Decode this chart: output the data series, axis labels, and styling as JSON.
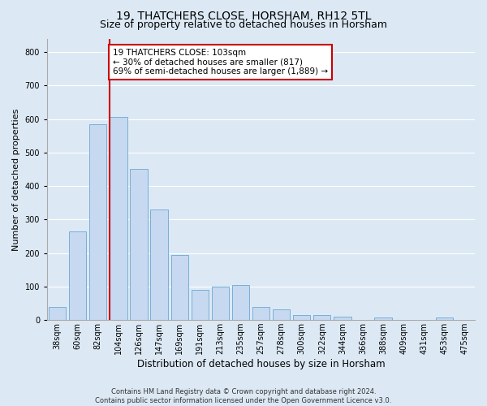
{
  "title": "19, THATCHERS CLOSE, HORSHAM, RH12 5TL",
  "subtitle": "Size of property relative to detached houses in Horsham",
  "xlabel": "Distribution of detached houses by size in Horsham",
  "ylabel": "Number of detached properties",
  "categories": [
    "38sqm",
    "60sqm",
    "82sqm",
    "104sqm",
    "126sqm",
    "147sqm",
    "169sqm",
    "191sqm",
    "213sqm",
    "235sqm",
    "257sqm",
    "278sqm",
    "300sqm",
    "322sqm",
    "344sqm",
    "366sqm",
    "388sqm",
    "409sqm",
    "431sqm",
    "453sqm",
    "475sqm"
  ],
  "values": [
    38,
    265,
    585,
    605,
    450,
    330,
    195,
    90,
    100,
    105,
    38,
    33,
    15,
    15,
    10,
    0,
    7,
    0,
    0,
    7,
    0
  ],
  "bar_color": "#c6d9f0",
  "bar_edge_color": "#7aaed6",
  "vline_color": "#cc0000",
  "annotation_text": "19 THATCHERS CLOSE: 103sqm\n← 30% of detached houses are smaller (817)\n69% of semi-detached houses are larger (1,889) →",
  "annotation_box_color": "#ffffff",
  "annotation_box_edge_color": "#cc0000",
  "ylim": [
    0,
    840
  ],
  "yticks": [
    0,
    100,
    200,
    300,
    400,
    500,
    600,
    700,
    800
  ],
  "footer_line1": "Contains HM Land Registry data © Crown copyright and database right 2024.",
  "footer_line2": "Contains public sector information licensed under the Open Government Licence v3.0.",
  "bg_color": "#dce9f5",
  "plot_bg_color": "#dce9f5",
  "grid_color": "#ffffff",
  "title_fontsize": 10,
  "subtitle_fontsize": 9,
  "tick_fontsize": 7,
  "ylabel_fontsize": 8,
  "xlabel_fontsize": 8.5,
  "footer_fontsize": 6,
  "annotation_fontsize": 7.5
}
